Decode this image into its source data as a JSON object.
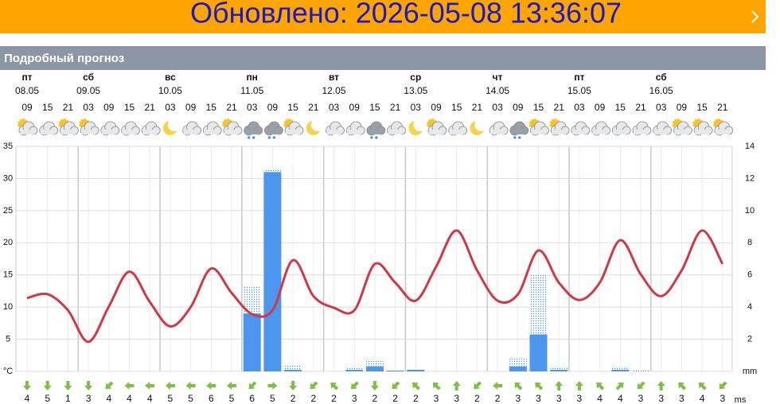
{
  "banner": {
    "text": "Обновлено: 2026-05-08 13:36:07"
  },
  "header": {
    "title": "Подробный прогноз"
  },
  "days": [
    {
      "name": "пт",
      "date": "08.05"
    },
    {
      "name": "сб",
      "date": "09.05"
    },
    {
      "name": "вс",
      "date": "10.05"
    },
    {
      "name": "пн",
      "date": "11.05"
    },
    {
      "name": "вт",
      "date": "12.05"
    },
    {
      "name": "ср",
      "date": "13.05"
    },
    {
      "name": "чт",
      "date": "14.05"
    },
    {
      "name": "пт",
      "date": "15.05"
    },
    {
      "name": "сб",
      "date": "16.05"
    }
  ],
  "chart_data": {
    "type": "line",
    "categories": [
      "09",
      "15",
      "21",
      "03",
      "09",
      "15",
      "21",
      "03",
      "09",
      "15",
      "21",
      "03",
      "09",
      "15",
      "21",
      "03",
      "09",
      "15",
      "21",
      "03",
      "09",
      "15",
      "21",
      "03",
      "09",
      "15",
      "21",
      "03",
      "09",
      "15",
      "21",
      "03",
      "09",
      "15",
      "21"
    ],
    "temperature": {
      "color": "#d23745",
      "values": [
        11.4,
        12.0,
        9.5,
        4.6,
        10.1,
        15.5,
        10.8,
        7.0,
        10.0,
        16.0,
        12.2,
        8.9,
        9.5,
        17.3,
        11.7,
        9.9,
        9.5,
        16.7,
        13.8,
        11.0,
        16.3,
        21.9,
        15.7,
        11.0,
        12.0,
        18.8,
        13.8,
        11.1,
        13.8,
        20.4,
        15.1,
        11.7,
        15.7,
        21.9,
        16.7
      ]
    },
    "precipitation": {
      "color": "#4d96f0",
      "values": [
        0,
        0,
        0,
        0,
        0,
        0,
        0,
        0,
        0,
        0,
        0,
        3.6,
        12.4,
        0.1,
        0,
        0,
        0.1,
        0.3,
        0.05,
        0.1,
        0,
        0,
        0,
        0,
        0.3,
        2.3,
        0.1,
        0,
        0,
        0.1,
        0,
        0,
        0,
        0,
        0
      ]
    },
    "precipitation_max": {
      "color": "#4d96f0",
      "values": [
        0,
        0,
        0,
        0,
        0,
        0,
        0,
        0,
        0,
        0,
        0,
        5.3,
        12.6,
        0.4,
        0,
        0,
        0.2,
        0.7,
        0.05,
        0.1,
        0,
        0,
        0,
        0,
        0.8,
        6.0,
        0.3,
        0,
        0,
        0.3,
        0.1,
        0,
        0,
        0,
        0
      ]
    },
    "ylim": [
      0,
      35
    ],
    "yticks": [
      {
        "value": 0,
        "label": "°C"
      },
      5,
      10,
      15,
      20,
      25,
      30,
      35
    ],
    "y2lim": [
      0,
      14
    ],
    "y2ticks": [
      {
        "value": 0,
        "label": "mm"
      },
      2,
      4,
      6,
      8,
      10,
      12,
      14
    ],
    "grid": true,
    "wind": {
      "speeds": [
        4,
        5,
        1,
        3,
        4,
        4,
        4,
        5,
        5,
        6,
        5,
        6,
        5,
        2,
        2,
        2,
        3,
        2,
        2,
        2,
        3,
        3,
        2,
        2,
        3,
        3,
        3,
        3,
        4,
        4,
        3,
        3,
        3,
        4,
        3
      ],
      "unit": "ms",
      "color": "#7bc143"
    }
  }
}
